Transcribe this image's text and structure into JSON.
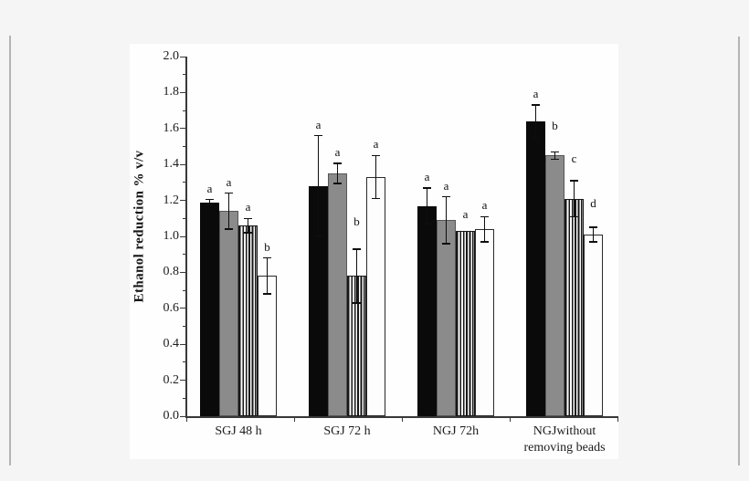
{
  "window": {
    "background": "#f4f5f4",
    "panel_background": "#fefefe"
  },
  "colors": {
    "axis": "#383838",
    "text": "#1b1b1b",
    "bar_black": "#0a0a0a",
    "bar_gray": "#8b8b8b",
    "bar_white": "#fdfdfd",
    "stripe": "#171717",
    "error_bar": "#0e0e0e"
  },
  "chart_data": {
    "type": "bar",
    "title": "",
    "xlabel": "",
    "ylabel": "Ethanol reduction % v/v",
    "ylim": [
      0.0,
      2.0
    ],
    "ytick_step": 0.2,
    "yminor_step": 0.1,
    "ytick_decimals": 1,
    "grid": false,
    "legend": "none",
    "error_bars": true,
    "categories": [
      "SGJ 48 h",
      "SGJ 72 h",
      "NGJ 72h",
      "NGJwithout\nremoving beads"
    ],
    "series": [
      {
        "name": "black",
        "fill": "solid-black",
        "values": [
          1.19,
          1.28,
          1.17,
          1.64
        ],
        "errors": [
          0.015,
          0.28,
          0.1,
          0.09
        ],
        "letters": [
          "a",
          "a",
          "a",
          "a"
        ],
        "letter_dy": [
          0,
          0,
          0,
          0
        ]
      },
      {
        "name": "gray",
        "fill": "solid-gray",
        "values": [
          1.14,
          1.35,
          1.09,
          1.45
        ],
        "errors": [
          0.1,
          0.055,
          0.13,
          0.02
        ],
        "letters": [
          "a",
          "a",
          "a",
          "b"
        ],
        "letter_dy": [
          0,
          0,
          0,
          -16
        ]
      },
      {
        "name": "striped",
        "fill": "vertical-stripes",
        "values": [
          1.06,
          0.78,
          1.03,
          1.21
        ],
        "errors": [
          0.04,
          0.15,
          0,
          0.1
        ],
        "letters": [
          "a",
          "b",
          "a",
          "c"
        ],
        "letter_dy": [
          0,
          -18,
          -6,
          -12
        ]
      },
      {
        "name": "white",
        "fill": "white-outline",
        "values": [
          0.78,
          1.33,
          1.04,
          1.01
        ],
        "errors": [
          0.1,
          0.12,
          0.07,
          0.04
        ],
        "letters": [
          "b",
          "a",
          "a",
          "d"
        ],
        "letter_dy": [
          0,
          0,
          0,
          -14
        ]
      }
    ]
  }
}
